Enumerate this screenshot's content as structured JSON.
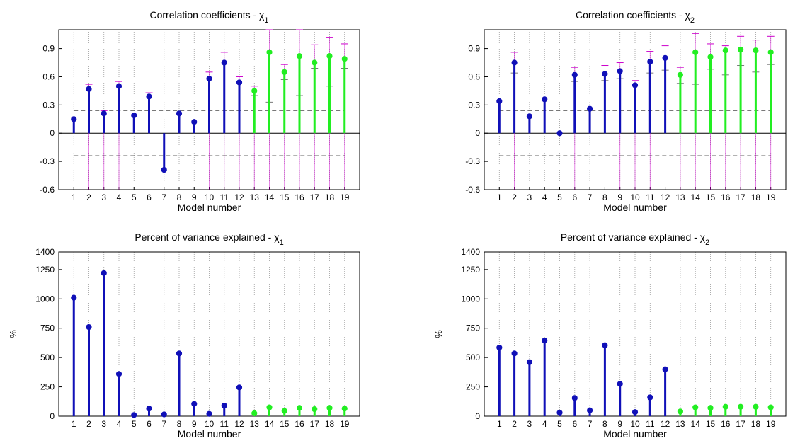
{
  "chart_data": [
    {
      "type": "stem",
      "title": "Correlation coefficients - χ",
      "title_subscript": "1",
      "xlabel": "Model number",
      "ylabel": "",
      "categories": [
        1,
        2,
        3,
        4,
        5,
        6,
        7,
        8,
        9,
        10,
        11,
        12,
        13,
        14,
        15,
        16,
        17,
        18,
        19
      ],
      "ylim": [
        -0.6,
        1.1
      ],
      "yticks": [
        -0.6,
        -0.3,
        0,
        0.3,
        0.6,
        0.9
      ],
      "ytick_labels": [
        "-0.6",
        "-0.3",
        "0",
        "0.3",
        "0.6",
        "0.9"
      ],
      "reference_lines": [
        0.24,
        -0.24
      ],
      "series": [
        {
          "color": "#1010b8",
          "x": [
            1,
            2,
            3,
            4,
            5,
            6,
            7,
            8,
            9,
            10,
            11,
            12
          ],
          "values": [
            0.15,
            0.47,
            0.21,
            0.5,
            0.19,
            0.39,
            -0.39,
            0.21,
            0.12,
            0.58,
            0.75,
            0.54
          ]
        },
        {
          "color": "#22ee22",
          "x": [
            13,
            14,
            15,
            16,
            17,
            18,
            19
          ],
          "values": [
            0.45,
            0.86,
            0.65,
            0.82,
            0.75,
            0.82,
            0.79
          ]
        }
      ],
      "error_bars": {
        "color": "#cc00cc",
        "upper": [
          null,
          0.52,
          0.24,
          0.55,
          null,
          0.43,
          null,
          null,
          null,
          0.65,
          0.86,
          0.6,
          0.5,
          1.1,
          0.73,
          1.1,
          0.94,
          1.02,
          0.95
        ],
        "lower": [
          null,
          null,
          null,
          null,
          null,
          null,
          null,
          null,
          null,
          null,
          null,
          null,
          0.4,
          0.33,
          0.57,
          0.4,
          0.69,
          0.5,
          0.69
        ]
      }
    },
    {
      "type": "stem",
      "title": "Correlation coefficients - χ",
      "title_subscript": "2",
      "xlabel": "Model number",
      "ylabel": "",
      "categories": [
        1,
        2,
        3,
        4,
        5,
        6,
        7,
        8,
        9,
        10,
        11,
        12,
        13,
        14,
        15,
        16,
        17,
        18,
        19
      ],
      "ylim": [
        -0.6,
        1.1
      ],
      "yticks": [
        -0.6,
        -0.3,
        0,
        0.3,
        0.6,
        0.9
      ],
      "ytick_labels": [
        "-0.6",
        "-0.3",
        "0",
        "0.3",
        "0.6",
        "0.9"
      ],
      "reference_lines": [
        0.24,
        -0.24
      ],
      "series": [
        {
          "color": "#1010b8",
          "x": [
            1,
            2,
            3,
            4,
            5,
            6,
            7,
            8,
            9,
            10,
            11,
            12
          ],
          "values": [
            0.34,
            0.75,
            0.18,
            0.36,
            0.0,
            0.62,
            0.26,
            0.63,
            0.66,
            0.51,
            0.76,
            0.8
          ]
        },
        {
          "color": "#22ee22",
          "x": [
            13,
            14,
            15,
            16,
            17,
            18,
            19
          ],
          "values": [
            0.62,
            0.86,
            0.81,
            0.88,
            0.89,
            0.88,
            0.86
          ]
        }
      ],
      "error_bars": {
        "color": "#cc00cc",
        "upper": [
          null,
          0.86,
          null,
          null,
          null,
          0.7,
          null,
          0.72,
          0.75,
          0.56,
          0.87,
          0.93,
          0.7,
          1.06,
          0.95,
          0.93,
          1.03,
          0.99,
          1.03
        ],
        "lower": [
          null,
          0.64,
          null,
          null,
          null,
          0.55,
          null,
          0.56,
          0.58,
          null,
          0.64,
          0.67,
          0.53,
          0.52,
          0.68,
          0.62,
          0.72,
          0.65,
          0.73
        ]
      }
    },
    {
      "type": "stem",
      "title": "Percent of variance explained - χ",
      "title_subscript": "1",
      "xlabel": "Model number",
      "ylabel": "%",
      "categories": [
        1,
        2,
        3,
        4,
        5,
        6,
        7,
        8,
        9,
        10,
        11,
        12,
        13,
        14,
        15,
        16,
        17,
        18,
        19
      ],
      "ylim": [
        0,
        1400
      ],
      "yticks": [
        0,
        250,
        500,
        750,
        1000,
        1250,
        1400
      ],
      "ytick_labels": [
        "0",
        "250",
        "500",
        "750",
        "1000",
        "1250",
        "1400"
      ],
      "series": [
        {
          "color": "#1010b8",
          "x": [
            1,
            2,
            3,
            4,
            5,
            6,
            7,
            8,
            9,
            10,
            11,
            12
          ],
          "values": [
            1010,
            760,
            1220,
            360,
            10,
            65,
            15,
            535,
            105,
            20,
            90,
            245
          ]
        },
        {
          "color": "#22ee22",
          "x": [
            13,
            14,
            15,
            16,
            17,
            18,
            19
          ],
          "values": [
            25,
            75,
            45,
            70,
            60,
            70,
            65
          ]
        }
      ]
    },
    {
      "type": "stem",
      "title": "Percent of variance explained - χ",
      "title_subscript": "2",
      "xlabel": "Model number",
      "ylabel": "%",
      "categories": [
        1,
        2,
        3,
        4,
        5,
        6,
        7,
        8,
        9,
        10,
        11,
        12,
        13,
        14,
        15,
        16,
        17,
        18,
        19
      ],
      "ylim": [
        0,
        1400
      ],
      "yticks": [
        0,
        250,
        500,
        750,
        1000,
        1250,
        1400
      ],
      "ytick_labels": [
        "0",
        "250",
        "500",
        "750",
        "1000",
        "1250",
        "1400"
      ],
      "series": [
        {
          "color": "#1010b8",
          "x": [
            1,
            2,
            3,
            4,
            5,
            6,
            7,
            8,
            9,
            10,
            11,
            12
          ],
          "values": [
            585,
            535,
            460,
            645,
            30,
            155,
            50,
            605,
            275,
            35,
            160,
            400
          ]
        },
        {
          "color": "#22ee22",
          "x": [
            13,
            14,
            15,
            16,
            17,
            18,
            19
          ],
          "values": [
            40,
            75,
            70,
            80,
            80,
            80,
            75
          ]
        }
      ]
    }
  ]
}
